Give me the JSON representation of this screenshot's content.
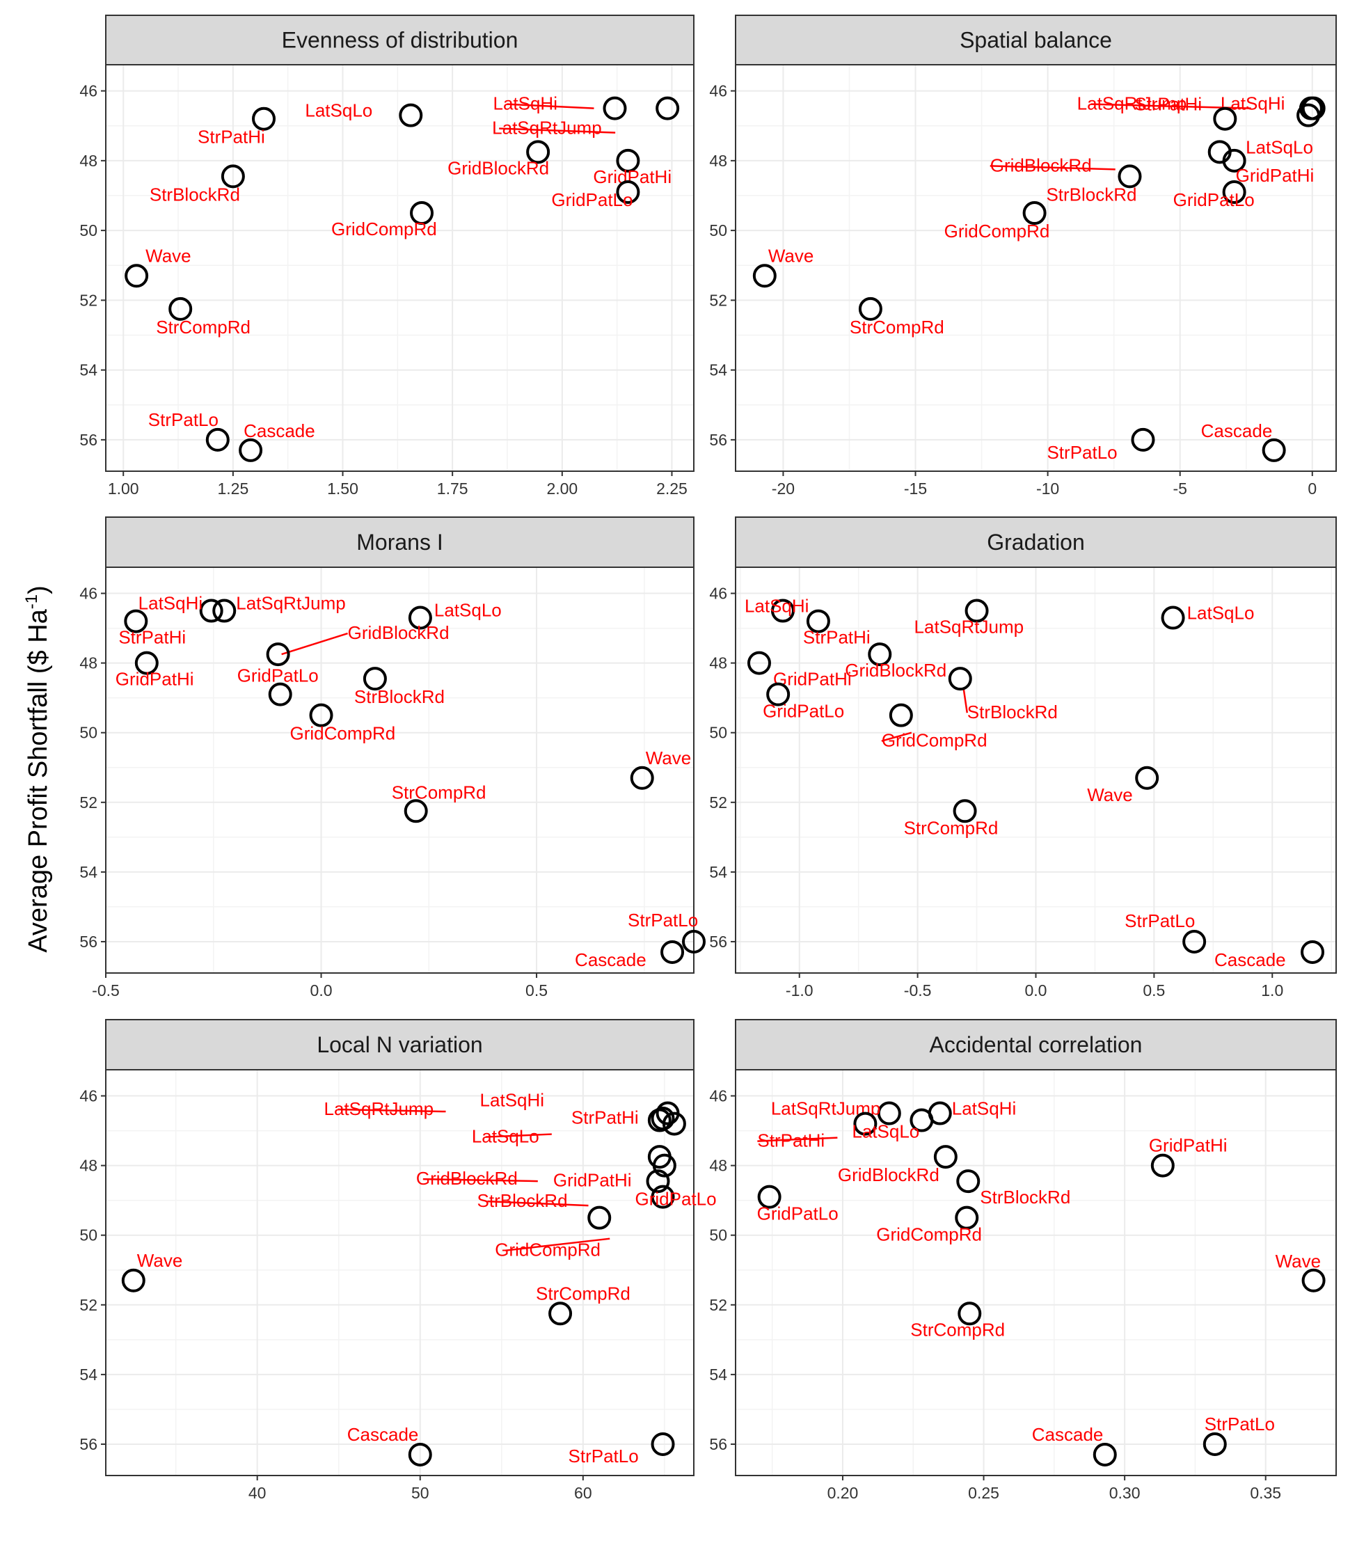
{
  "y_axis_title": "Average Profit Shortfall ($ Ha",
  "y_axis_title_sup": "-1",
  "y_axis_title_end": ")",
  "colors": {
    "label": "#ff0000",
    "strip_fill": "#d9d9d9",
    "grid": "#ebebeb",
    "point_stroke": "#000000"
  },
  "chart_data": [
    {
      "type": "scatter",
      "title": "Evenness of distribution",
      "xlim": [
        0.96,
        2.3
      ],
      "ylim": [
        56.9,
        45.25
      ],
      "grid": true,
      "xticks": [
        1.0,
        1.25,
        1.5,
        1.75,
        2.0,
        2.25
      ],
      "xtick_labels": [
        "1.00",
        "1.25",
        "1.50",
        "1.75",
        "2.00",
        "2.25"
      ],
      "yticks": [
        46,
        48,
        50,
        52,
        54,
        56
      ],
      "points": [
        {
          "name": "LatSqHi",
          "x": 2.12,
          "y": 46.5
        },
        {
          "name": "LatSqRtJump",
          "x": 2.24,
          "y": 46.5
        },
        {
          "name": "LatSqLo",
          "x": 1.655,
          "y": 46.7
        },
        {
          "name": "StrPatHi",
          "x": 1.32,
          "y": 46.8
        },
        {
          "name": "GridBlockRd",
          "x": 1.945,
          "y": 47.75
        },
        {
          "name": "GridPatHi",
          "x": 2.15,
          "y": 48.0
        },
        {
          "name": "StrBlockRd",
          "x": 1.25,
          "y": 48.45
        },
        {
          "name": "GridPatLo",
          "x": 2.15,
          "y": 48.9
        },
        {
          "name": "GridCompRd",
          "x": 1.68,
          "y": 49.5
        },
        {
          "name": "Wave",
          "x": 1.03,
          "y": 51.3
        },
        {
          "name": "StrCompRd",
          "x": 1.13,
          "y": 52.25
        },
        {
          "name": "StrPatLo",
          "x": 1.215,
          "y": 56.0
        },
        {
          "name": "Cascade",
          "x": 1.29,
          "y": 56.3
        }
      ]
    },
    {
      "type": "scatter",
      "title": "Spatial balance",
      "xlim": [
        -21.8,
        0.9
      ],
      "ylim": [
        56.9,
        45.25
      ],
      "grid": true,
      "xticks": [
        -20,
        -15,
        -10,
        -5,
        0
      ],
      "xtick_labels": [
        "-20",
        "-15",
        "-10",
        "-5",
        "0"
      ],
      "yticks": [
        46,
        48,
        50,
        52,
        54,
        56
      ],
      "points": [
        {
          "name": "LatSqRtJump",
          "x": 0.05,
          "y": 46.5
        },
        {
          "name": "LatSqHi",
          "x": -0.05,
          "y": 46.5
        },
        {
          "name": "LatSqLo",
          "x": -0.15,
          "y": 46.7
        },
        {
          "name": "StrPatHi",
          "x": -3.3,
          "y": 46.8
        },
        {
          "name": "GridBlockRd",
          "x": -3.5,
          "y": 47.75
        },
        {
          "name": "GridPatHi",
          "x": -2.95,
          "y": 48.0
        },
        {
          "name": "StrBlockRd",
          "x": -6.9,
          "y": 48.45
        },
        {
          "name": "GridPatLo",
          "x": -2.95,
          "y": 48.9
        },
        {
          "name": "GridCompRd",
          "x": -10.5,
          "y": 49.5
        },
        {
          "name": "Wave",
          "x": -20.7,
          "y": 51.3
        },
        {
          "name": "StrCompRd",
          "x": -16.7,
          "y": 52.25
        },
        {
          "name": "StrPatLo",
          "x": -6.4,
          "y": 56.0
        },
        {
          "name": "Cascade",
          "x": -1.45,
          "y": 56.3
        }
      ]
    },
    {
      "type": "scatter",
      "title": "Morans I",
      "xlim": [
        -0.5,
        0.865
      ],
      "ylim": [
        56.9,
        45.25
      ],
      "grid": true,
      "xticks": [
        -0.5,
        0.0,
        0.5
      ],
      "xtick_labels": [
        "-0.5",
        "0.0",
        "0.5"
      ],
      "yticks": [
        46,
        48,
        50,
        52,
        54,
        56
      ],
      "points": [
        {
          "name": "LatSqHi",
          "x": -0.255,
          "y": 46.5
        },
        {
          "name": "LatSqRtJump",
          "x": -0.225,
          "y": 46.5
        },
        {
          "name": "StrPatHi",
          "x": -0.43,
          "y": 46.8
        },
        {
          "name": "LatSqLo",
          "x": 0.23,
          "y": 46.7
        },
        {
          "name": "GridBlockRd",
          "x": -0.1,
          "y": 47.75
        },
        {
          "name": "GridPatHi",
          "x": -0.405,
          "y": 48.0
        },
        {
          "name": "StrBlockRd",
          "x": 0.125,
          "y": 48.45
        },
        {
          "name": "GridPatLo",
          "x": -0.095,
          "y": 48.9
        },
        {
          "name": "GridCompRd",
          "x": 0.0,
          "y": 49.5
        },
        {
          "name": "Wave",
          "x": 0.745,
          "y": 51.3
        },
        {
          "name": "StrCompRd",
          "x": 0.22,
          "y": 52.25
        },
        {
          "name": "StrPatLo",
          "x": 0.865,
          "y": 56.0
        },
        {
          "name": "Cascade",
          "x": 0.815,
          "y": 56.3
        }
      ]
    },
    {
      "type": "scatter",
      "title": "Gradation",
      "xlim": [
        -1.27,
        1.27
      ],
      "ylim": [
        56.9,
        45.25
      ],
      "grid": true,
      "xticks": [
        -1.0,
        -0.5,
        0.0,
        0.5,
        1.0
      ],
      "xtick_labels": [
        "-1.0",
        "-0.5",
        "0.0",
        "0.5",
        "1.0"
      ],
      "yticks": [
        46,
        48,
        50,
        52,
        54,
        56
      ],
      "points": [
        {
          "name": "LatSqHi",
          "x": -1.07,
          "y": 46.5
        },
        {
          "name": "LatSqRtJump",
          "x": -0.25,
          "y": 46.5
        },
        {
          "name": "LatSqLo",
          "x": 0.58,
          "y": 46.7
        },
        {
          "name": "StrPatHi",
          "x": -0.92,
          "y": 46.8
        },
        {
          "name": "GridBlockRd",
          "x": -0.66,
          "y": 47.75
        },
        {
          "name": "GridPatHi",
          "x": -1.17,
          "y": 48.0
        },
        {
          "name": "StrBlockRd",
          "x": -0.32,
          "y": 48.45
        },
        {
          "name": "GridPatLo",
          "x": -1.09,
          "y": 48.9
        },
        {
          "name": "GridCompRd",
          "x": -0.57,
          "y": 49.5
        },
        {
          "name": "Wave",
          "x": 0.47,
          "y": 51.3
        },
        {
          "name": "StrCompRd",
          "x": -0.3,
          "y": 52.25
        },
        {
          "name": "StrPatLo",
          "x": 0.67,
          "y": 56.0
        },
        {
          "name": "Cascade",
          "x": 1.17,
          "y": 56.3
        }
      ]
    },
    {
      "type": "scatter",
      "title": "Local N variation",
      "xlim": [
        30.7,
        66.8
      ],
      "ylim": [
        56.9,
        45.25
      ],
      "grid": true,
      "xticks": [
        40,
        50,
        60
      ],
      "xtick_labels": [
        "40",
        "50",
        "60"
      ],
      "yticks": [
        46,
        48,
        50,
        52,
        54,
        56
      ],
      "points": [
        {
          "name": "LatSqRtJump",
          "x": 64.9,
          "y": 46.65
        },
        {
          "name": "LatSqHi",
          "x": 65.2,
          "y": 46.5
        },
        {
          "name": "StrPatHi",
          "x": 65.6,
          "y": 46.8
        },
        {
          "name": "LatSqLo",
          "x": 64.7,
          "y": 46.7
        },
        {
          "name": "GridBlockRd",
          "x": 64.7,
          "y": 47.75
        },
        {
          "name": "GridPatHi",
          "x": 65.0,
          "y": 48.0
        },
        {
          "name": "StrBlockRd",
          "x": 64.6,
          "y": 48.45
        },
        {
          "name": "GridPatLo",
          "x": 64.9,
          "y": 48.9
        },
        {
          "name": "GridCompRd",
          "x": 61.0,
          "y": 49.5
        },
        {
          "name": "Wave",
          "x": 32.4,
          "y": 51.3
        },
        {
          "name": "StrCompRd",
          "x": 58.6,
          "y": 52.25
        },
        {
          "name": "StrPatLo",
          "x": 64.9,
          "y": 56.0
        },
        {
          "name": "Cascade",
          "x": 50.0,
          "y": 56.3
        }
      ]
    },
    {
      "type": "scatter",
      "title": "Accidental correlation",
      "xlim": [
        0.162,
        0.375
      ],
      "ylim": [
        56.9,
        45.25
      ],
      "grid": true,
      "xticks": [
        0.2,
        0.25,
        0.3,
        0.35
      ],
      "xtick_labels": [
        "0.20",
        "0.25",
        "0.30",
        "0.35"
      ],
      "yticks": [
        46,
        48,
        50,
        52,
        54,
        56
      ],
      "points": [
        {
          "name": "LatSqRtJump",
          "x": 0.2165,
          "y": 46.5
        },
        {
          "name": "LatSqHi",
          "x": 0.2345,
          "y": 46.5
        },
        {
          "name": "StrPatHi",
          "x": 0.208,
          "y": 46.8
        },
        {
          "name": "LatSqLo",
          "x": 0.228,
          "y": 46.7
        },
        {
          "name": "GridBlockRd",
          "x": 0.2365,
          "y": 47.75
        },
        {
          "name": "GridPatHi",
          "x": 0.3135,
          "y": 48.0
        },
        {
          "name": "StrBlockRd",
          "x": 0.2445,
          "y": 48.45
        },
        {
          "name": "GridPatLo",
          "x": 0.174,
          "y": 48.9
        },
        {
          "name": "GridCompRd",
          "x": 0.244,
          "y": 49.5
        },
        {
          "name": "Wave",
          "x": 0.367,
          "y": 51.3
        },
        {
          "name": "StrCompRd",
          "x": 0.245,
          "y": 52.25
        },
        {
          "name": "StrPatLo",
          "x": 0.332,
          "y": 56.0
        },
        {
          "name": "Cascade",
          "x": 0.293,
          "y": 56.3
        }
      ]
    }
  ]
}
